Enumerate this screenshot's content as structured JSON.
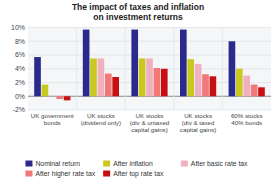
{
  "chart_data": {
    "type": "bar",
    "title": "The impact of taxes and inflation\non investment returns",
    "categories": [
      "UK government\nbonds",
      "UK stocks\n(dividend only)",
      "UK stocks\n(div & untaxed\ncapital gains)",
      "UK stocks\n(div & taxed\ncapital gains)",
      "60% stocks\n40% bonds"
    ],
    "series": [
      {
        "name": "Nominal return",
        "color": "#2a2a8c",
        "values": [
          5.7,
          9.7,
          9.7,
          9.7,
          8.0
        ]
      },
      {
        "name": "After inflation",
        "color": "#c8c820",
        "values": [
          1.7,
          5.5,
          5.5,
          5.4,
          4.0
        ]
      },
      {
        "name": "After basic rate tax",
        "color": "#f0b0c0",
        "values": [
          0.05,
          5.5,
          5.5,
          4.7,
          3.0
        ]
      },
      {
        "name": "After higher rate tax",
        "color": "#f07878",
        "values": [
          -0.4,
          3.3,
          4.1,
          3.2,
          1.7
        ]
      },
      {
        "name": "After top rate tax",
        "color": "#c81010",
        "values": [
          -0.6,
          2.8,
          4.0,
          2.9,
          1.3
        ]
      }
    ],
    "ylim": [
      -2,
      10
    ],
    "yticks": [
      {
        "value": -2,
        "label": "-2%"
      },
      {
        "value": 0,
        "label": "0%"
      },
      {
        "value": 2,
        "label": "2%"
      },
      {
        "value": 4,
        "label": "4%"
      },
      {
        "value": 6,
        "label": "6%"
      },
      {
        "value": 8,
        "label": "8%"
      },
      {
        "value": 10,
        "label": "10%"
      }
    ],
    "grid": true,
    "legend": "bottom"
  }
}
